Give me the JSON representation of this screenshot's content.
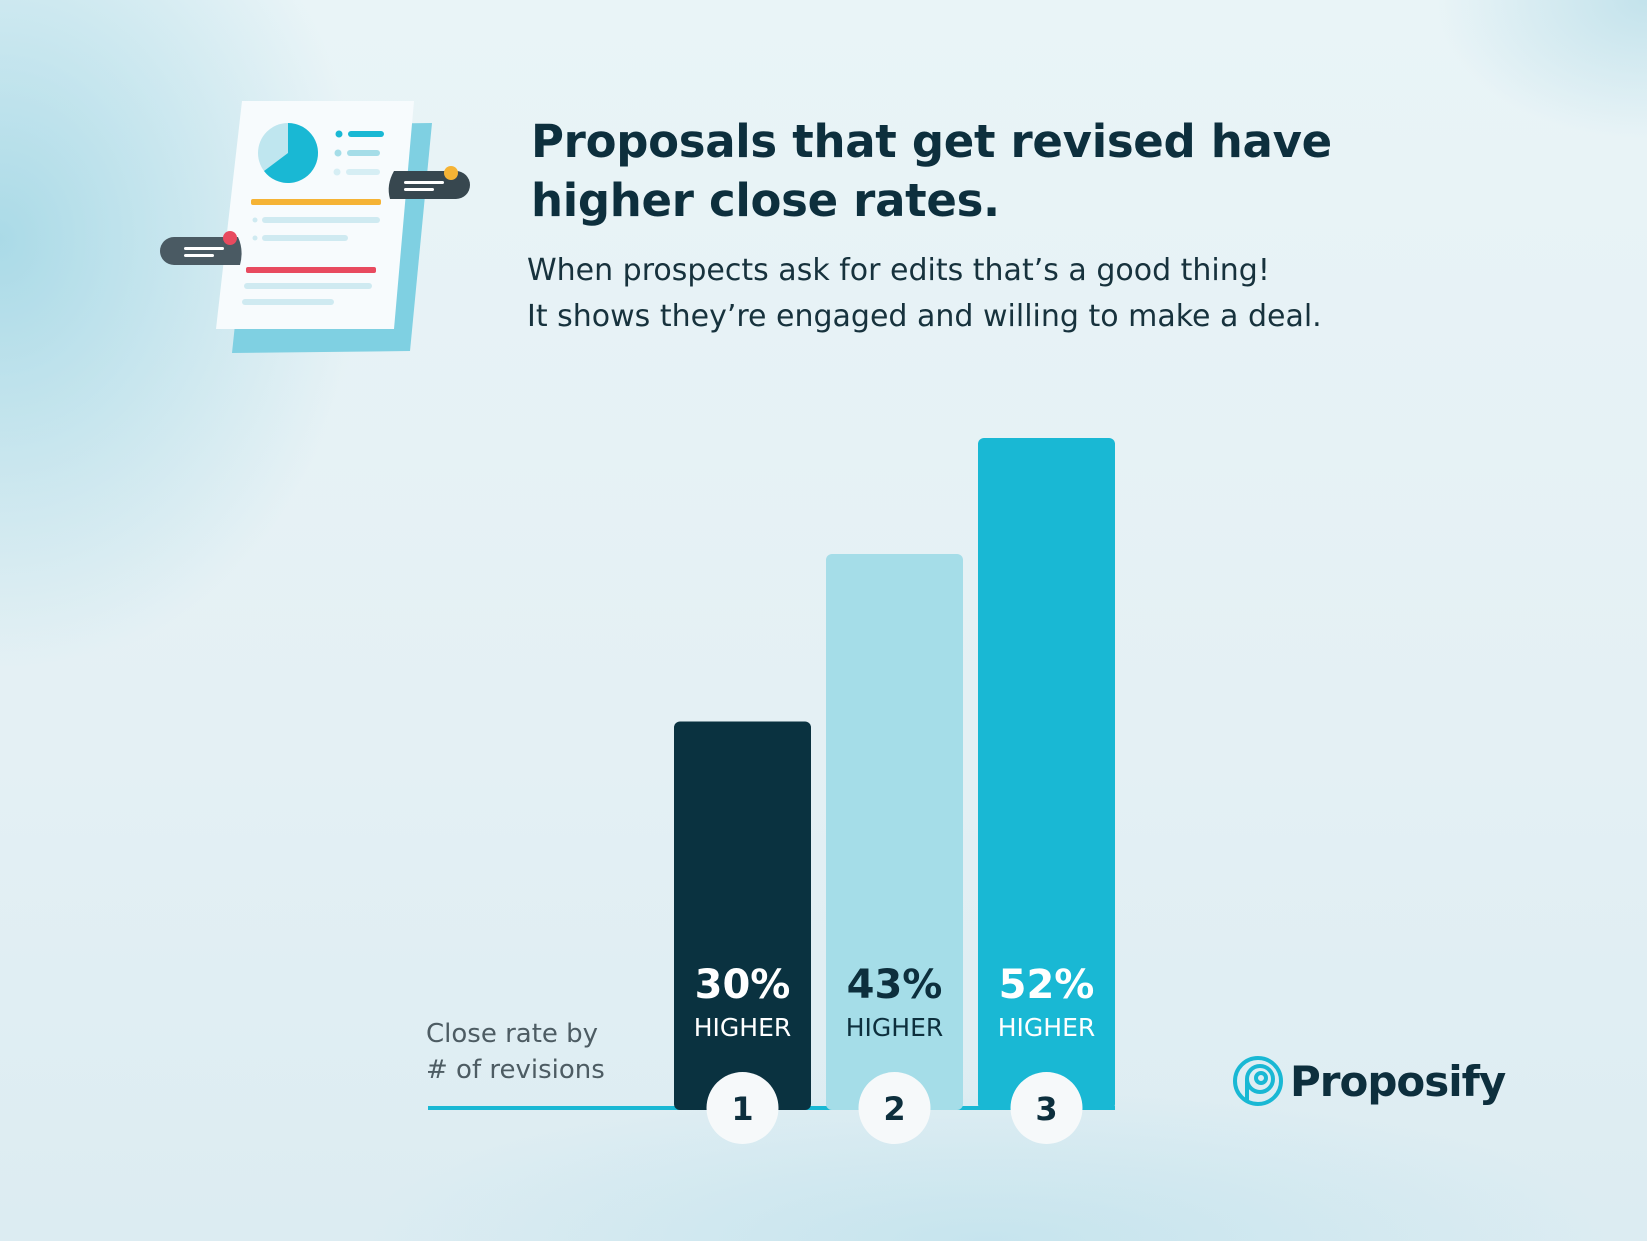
{
  "title_lines": [
    "Proposals that get revised have",
    "higher close rates."
  ],
  "subtitle_lines": [
    "When prospects ask for edits that’s a good thing!",
    "It shows they’re engaged and willing to make a deal."
  ],
  "axis_caption_lines": [
    "Close rate by",
    "# of revisions"
  ],
  "brand": "Proposify",
  "colors": {
    "accent": "#19b8d4",
    "dark": "#0a3240",
    "light": "#a5dde8",
    "text": "#0d2f3d"
  },
  "chart_data": {
    "type": "bar",
    "categories": [
      "1",
      "2",
      "3"
    ],
    "values": [
      30,
      43,
      52
    ],
    "value_labels": [
      "30%",
      "43%",
      "52%"
    ],
    "value_sublabel": "HIGHER",
    "bar_colors": [
      "#0a3240",
      "#a5dde8",
      "#19b8d4"
    ],
    "label_colors": [
      "#ffffff",
      "#0d2f3d",
      "#ffffff"
    ],
    "ylim": [
      0,
      52
    ],
    "xlabel": "Close rate by # of revisions",
    "ylabel": "",
    "grid": false
  }
}
